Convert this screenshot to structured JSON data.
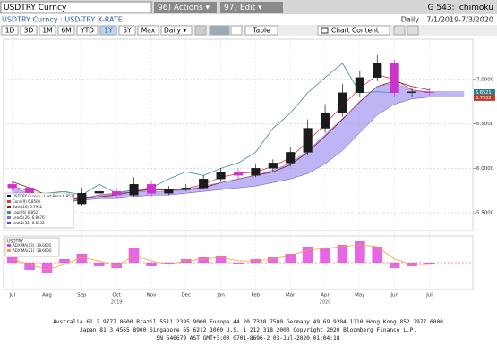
{
  "header": {
    "security": "USDTRY Curncy",
    "actions": "96) Actions ▾",
    "edit": "97) Edit ▾",
    "function": "G 543: ichimoku",
    "description": "USDTRY Curncy : USD-TRY X-RATE",
    "period": "Daily",
    "dates": "7/1/2019-7/3/2020"
  },
  "toolbar": {
    "ranges": [
      "1D",
      "3D",
      "1M",
      "6M",
      "YTD",
      "1Y",
      "5Y",
      "Max"
    ],
    "selected_range_index": 5,
    "frequency": "Daily ▾",
    "table": "Table",
    "chart_content": "Chart Content"
  },
  "chart_data": [
    {
      "type": "candlestick",
      "categories": [
        "Jul",
        null,
        "Aug",
        null,
        "Sep",
        null,
        "Oct",
        null,
        "Nov",
        null,
        "Dec",
        null,
        "Jan",
        null,
        "Feb",
        null,
        "Mar",
        null,
        "Apr",
        null,
        "May",
        null,
        "Jun",
        null,
        "Jul",
        null,
        null
      ],
      "year_labels": [
        "2019",
        "2020"
      ],
      "ylim": [
        5.3,
        7.45
      ],
      "yticks": [
        {
          "value": 5.5,
          "label": "5.5000"
        },
        {
          "value": 6,
          "label": "6.0000"
        },
        {
          "value": 6.5,
          "label": "6.5000"
        },
        {
          "value": 7,
          "label": "7.0000"
        }
      ],
      "grid": true,
      "up_color": "#1b1b1b",
      "down_color": "#cc33cc",
      "candles": {
        "name": "USDTRY Curncy - Last Price 6.8521",
        "open": [
          5.82,
          5.78,
          5.68,
          5.55,
          5.6,
          5.72,
          5.74,
          5.7,
          5.82,
          5.72,
          5.76,
          5.78,
          5.88,
          5.96,
          5.92,
          6.0,
          6.06,
          6.18,
          6.45,
          6.62,
          6.85,
          7.02,
          7.18,
          6.85,
          6.86,
          null,
          null
        ],
        "high": [
          5.86,
          5.82,
          5.72,
          5.66,
          5.78,
          5.8,
          5.78,
          5.9,
          5.86,
          5.8,
          5.82,
          5.92,
          6.0,
          6.0,
          6.04,
          6.1,
          6.24,
          6.55,
          6.72,
          6.95,
          7.1,
          7.27,
          7.22,
          6.9,
          6.9,
          null,
          null
        ],
        "low": [
          5.74,
          5.64,
          5.5,
          5.52,
          5.58,
          5.68,
          5.66,
          5.68,
          5.68,
          5.7,
          5.74,
          5.76,
          5.85,
          5.88,
          5.9,
          5.96,
          6.02,
          6.15,
          6.4,
          6.58,
          6.8,
          6.98,
          6.8,
          6.8,
          6.82,
          null,
          null
        ],
        "close": [
          5.78,
          5.68,
          5.55,
          5.6,
          5.72,
          5.74,
          5.7,
          5.82,
          5.72,
          5.76,
          5.78,
          5.88,
          5.96,
          5.92,
          6.0,
          6.06,
          6.18,
          6.45,
          6.62,
          6.85,
          7.02,
          7.18,
          6.85,
          6.86,
          6.85,
          null,
          null
        ]
      },
      "cloud_color": "#a99cf0",
      "series": [
        {
          "name": "Conv(9) 6.8500",
          "color": "#e53935",
          "values": [
            5.8,
            5.74,
            5.64,
            5.6,
            5.66,
            5.7,
            5.72,
            5.76,
            5.76,
            5.75,
            5.77,
            5.82,
            5.9,
            5.94,
            5.96,
            6.02,
            6.12,
            6.3,
            6.5,
            6.7,
            6.9,
            7.05,
            7.0,
            6.88,
            6.85,
            null,
            null
          ]
        },
        {
          "name": "Base(26) 6.7932",
          "color": "#8b1a1a",
          "values": [
            5.85,
            5.78,
            5.7,
            5.66,
            5.66,
            5.68,
            5.7,
            5.74,
            5.76,
            5.76,
            5.76,
            5.78,
            5.84,
            5.88,
            5.92,
            5.96,
            6.04,
            6.18,
            6.36,
            6.55,
            6.75,
            6.92,
            6.98,
            6.92,
            6.88,
            null,
            null
          ]
        },
        {
          "name": "Lag(26) 6.8521",
          "color": "#3a8fa0",
          "values": [
            5.55,
            5.6,
            5.72,
            5.74,
            5.7,
            5.82,
            5.72,
            5.76,
            5.78,
            5.88,
            5.96,
            5.92,
            6.0,
            6.06,
            6.18,
            6.45,
            6.62,
            6.85,
            7.02,
            7.18,
            6.85,
            6.86,
            6.85,
            null,
            null,
            null,
            null
          ]
        },
        {
          "name": "Lead1(26) 6.8676",
          "color": "#7b6fd8",
          "values": [
            5.78,
            5.72,
            5.66,
            5.64,
            5.66,
            5.7,
            5.72,
            5.74,
            5.74,
            5.74,
            5.76,
            5.8,
            5.84,
            5.88,
            5.92,
            5.98,
            6.06,
            6.2,
            6.38,
            6.56,
            6.74,
            6.92,
            6.96,
            6.88,
            6.86,
            6.86,
            6.86
          ]
        },
        {
          "name": "Lead2(52) 6.8352",
          "color": "#5a4fc0",
          "values": [
            5.7,
            5.66,
            5.62,
            5.62,
            5.64,
            5.66,
            5.66,
            5.68,
            5.7,
            5.7,
            5.72,
            5.74,
            5.76,
            5.78,
            5.8,
            5.84,
            5.88,
            5.94,
            6.05,
            6.2,
            6.4,
            6.6,
            6.72,
            6.78,
            6.8,
            6.8,
            6.8
          ]
        }
      ],
      "price_tags": [
        {
          "value": 6.8521,
          "label": "6.8521",
          "color": "#2e7d87"
        },
        {
          "value": 6.7932,
          "label": "6.7932",
          "color": "#c0392b"
        }
      ]
    },
    {
      "type": "histogram-line",
      "title": "USDTRY",
      "ylim": [
        -15,
        15
      ],
      "series": [
        {
          "name": "ADX MA(13) -19.6605",
          "color": "#e040e0",
          "kind": "bar",
          "values": [
            3,
            -4,
            -6,
            2,
            5,
            -2,
            -3,
            8,
            -2,
            -1,
            2,
            3,
            4,
            -1,
            2,
            3,
            5,
            9,
            8,
            10,
            12,
            9,
            -3,
            -2,
            -1,
            null,
            null
          ]
        },
        {
          "name": "ADX MA(21) -18.6600",
          "color": "#f0a030",
          "kind": "line",
          "values": [
            2,
            -1,
            -4,
            -1,
            3,
            1,
            -2,
            4,
            1,
            -1,
            1,
            2,
            3,
            1,
            1,
            2,
            4,
            7,
            8,
            9,
            10,
            9,
            2,
            -1,
            -1,
            null,
            null
          ]
        }
      ]
    }
  ],
  "footer": {
    "lines": [
      "Australia 61 2 9777 8600 Brazil 5511 2395 9000 Europe 44 20 7330 7500 Germany 49 69 9204 1210 Hong Kong 852 2977 6000",
      "Japan 81 3 4565 8900   Singapore 65 6212 1000   U.S. 1 212 318 2000          Copyright 2020 Bloomberg Finance L.P.",
      "SN 546679 AST  GMT+3:00 G701-8696-2 03-Jul-2020 01:04:18"
    ]
  }
}
